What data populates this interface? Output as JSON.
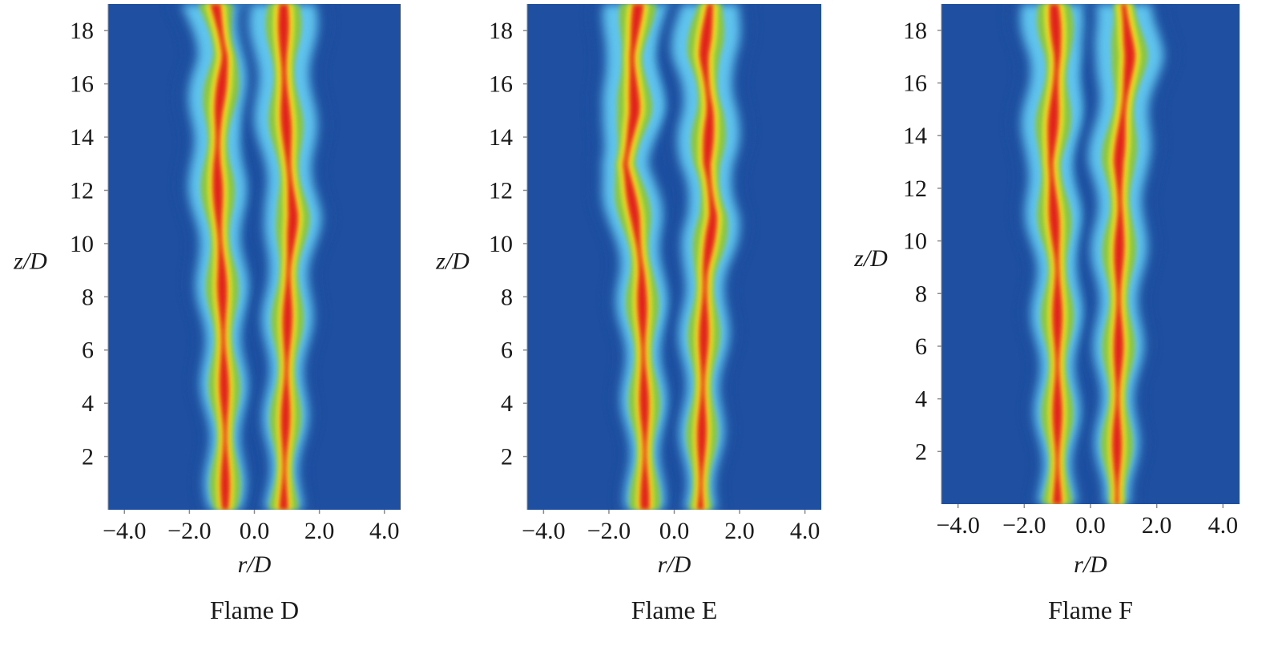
{
  "chart_data": [
    {
      "type": "heatmap",
      "title": "Flame D",
      "xlabel": "r/D",
      "ylabel": "z/D",
      "xlim": [
        -4.5,
        4.5
      ],
      "ylim": [
        0,
        19
      ],
      "xticks": [
        "-4.0",
        "-2.0",
        "0.0",
        "2.0",
        "4.0"
      ],
      "xtick_values": [
        -4,
        -2,
        0,
        2,
        4
      ],
      "yticks": [
        "2",
        "4",
        "6",
        "8",
        "10",
        "12",
        "14",
        "16",
        "18"
      ],
      "ytick_values": [
        2,
        4,
        6,
        8,
        10,
        12,
        14,
        16,
        18
      ],
      "background_color": "#1f4fa0",
      "colormap": [
        "#1f4fa0",
        "#5fc4ee",
        "#8cc63f",
        "#f6ee22",
        "#e2231a"
      ],
      "branches": [
        {
          "side": "left",
          "z": [
            0,
            3,
            6,
            9,
            11,
            13,
            15,
            17,
            19
          ],
          "r": [
            -0.9,
            -0.9,
            -0.95,
            -1.0,
            -1.1,
            -1.15,
            -1.1,
            -0.9,
            -1.2
          ]
        },
        {
          "side": "right",
          "z": [
            0,
            3,
            6,
            9,
            11,
            13,
            15,
            17,
            19
          ],
          "r": [
            0.9,
            0.95,
            1.0,
            1.05,
            1.2,
            1.05,
            0.95,
            0.9,
            0.9
          ]
        }
      ]
    },
    {
      "type": "heatmap",
      "title": "Flame E",
      "xlabel": "r/D",
      "ylabel": "z/D",
      "xlim": [
        -4.5,
        4.5
      ],
      "ylim": [
        0,
        19
      ],
      "xticks": [
        "-4.0",
        "-2.0",
        "0.0",
        "2.0",
        "4.0"
      ],
      "xtick_values": [
        -4,
        -2,
        0,
        2,
        4
      ],
      "yticks": [
        "2",
        "4",
        "6",
        "8",
        "10",
        "12",
        "14",
        "16",
        "18"
      ],
      "ytick_values": [
        2,
        4,
        6,
        8,
        10,
        12,
        14,
        16,
        18
      ],
      "background_color": "#1f4fa0",
      "colormap": [
        "#1f4fa0",
        "#5fc4ee",
        "#8cc63f",
        "#f6ee22",
        "#e2231a"
      ],
      "branches": [
        {
          "side": "left",
          "z": [
            0,
            3,
            6,
            9,
            11,
            13,
            15,
            17,
            19
          ],
          "r": [
            -0.9,
            -0.9,
            -0.95,
            -1.0,
            -1.2,
            -1.5,
            -1.2,
            -1.3,
            -1.1
          ]
        },
        {
          "side": "right",
          "z": [
            0,
            3,
            6,
            9,
            11,
            13,
            15,
            17,
            19
          ],
          "r": [
            0.8,
            0.85,
            0.9,
            0.95,
            1.2,
            1.0,
            1.1,
            0.9,
            1.1
          ]
        }
      ]
    },
    {
      "type": "heatmap",
      "title": "Flame F",
      "xlabel": "r/D",
      "ylabel": "z/D",
      "xlim": [
        -4.5,
        4.5
      ],
      "ylim": [
        0,
        19
      ],
      "xticks": [
        "-4.0",
        "-2.0",
        "0.0",
        "2.0",
        "4.0"
      ],
      "xtick_values": [
        -4,
        -2,
        0,
        2,
        4
      ],
      "yticks": [
        "2",
        "4",
        "6",
        "8",
        "10",
        "12",
        "14",
        "16",
        "18"
      ],
      "ytick_values": [
        2,
        4,
        6,
        8,
        10,
        12,
        14,
        16,
        18
      ],
      "background_color": "#1f4fa0",
      "colormap": [
        "#1f4fa0",
        "#5fc4ee",
        "#8cc63f",
        "#f6ee22",
        "#e2231a"
      ],
      "branches": [
        {
          "side": "left",
          "z": [
            0,
            3,
            6,
            9,
            11,
            13,
            15,
            17,
            19
          ],
          "r": [
            -1.0,
            -1.0,
            -1.0,
            -1.0,
            -1.1,
            -1.2,
            -1.1,
            -1.0,
            -1.1
          ]
        },
        {
          "side": "right",
          "z": [
            0,
            3,
            6,
            9,
            11,
            13,
            15,
            17,
            19
          ],
          "r": [
            0.8,
            0.8,
            0.85,
            0.85,
            0.9,
            0.85,
            1.0,
            1.2,
            1.0
          ]
        }
      ]
    }
  ]
}
